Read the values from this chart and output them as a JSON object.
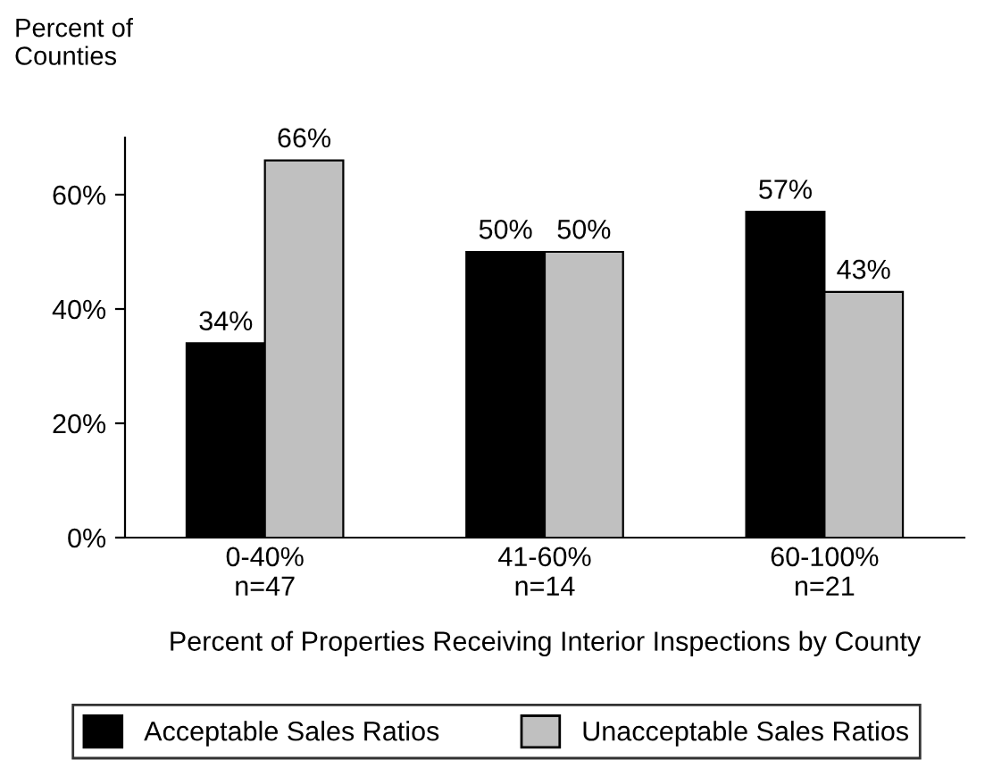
{
  "chart_data": {
    "type": "bar",
    "ylabel": "Percent of\nCounties",
    "xlabel": "Percent of Properties Receiving Interior Inspections by County",
    "categories": [
      "0-40%\nn=47",
      "41-60%\nn=14",
      "60-100%\nn=21"
    ],
    "series": [
      {
        "name": "Acceptable Sales Ratios",
        "color": "#000000",
        "values": [
          34,
          50,
          57
        ],
        "value_labels": [
          "34%",
          "50%",
          "57%"
        ]
      },
      {
        "name": "Unacceptable Sales Ratios",
        "color": "#c0c0c0",
        "values": [
          66,
          50,
          43
        ],
        "value_labels": [
          "66%",
          "50%",
          "43%"
        ]
      }
    ],
    "ylim": [
      0,
      70
    ],
    "yticks": [
      {
        "value": 0,
        "label": "0%"
      },
      {
        "value": 20,
        "label": "20%"
      },
      {
        "value": 40,
        "label": "40%"
      },
      {
        "value": 60,
        "label": "60%"
      }
    ],
    "legend": "bottom",
    "grid": false
  }
}
